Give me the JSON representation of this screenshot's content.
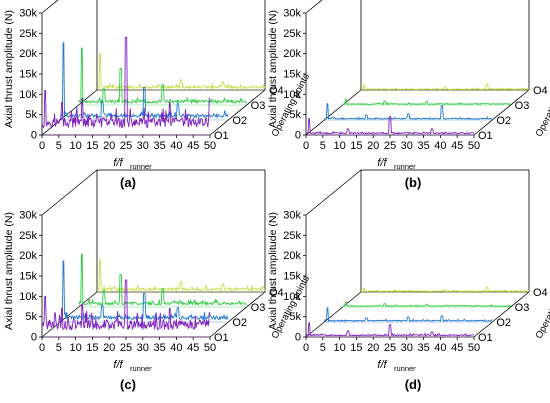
{
  "chart_data": [
    {
      "type": "line",
      "panel_label": "(a)",
      "ylabel": "Axial thrust amplitude (N)",
      "xlabel_main": "f/f",
      "xlabel_sub": "runner",
      "zlabel": "Operating points",
      "ylim": [
        0,
        30000
      ],
      "xlim": [
        0,
        50
      ],
      "xticks": [
        0,
        5,
        10,
        15,
        20,
        25,
        30,
        35,
        40,
        45,
        50
      ],
      "yticks": [
        0,
        5000,
        10000,
        15000,
        20000,
        25000,
        30000
      ],
      "ytick_labels": [
        "0",
        "5k",
        "10k",
        "15k",
        "20k",
        "25k",
        "30k"
      ],
      "z_categories": [
        "O1",
        "O2",
        "O3",
        "O4"
      ],
      "series": [
        {
          "name": "O1",
          "color": "#7f1fbf",
          "floor": 1800,
          "noise": 2500,
          "peaks": [
            {
              "x": 1,
              "y": 11000
            },
            {
              "x": 6,
              "y": 8000
            },
            {
              "x": 12,
              "y": 9000
            },
            {
              "x": 25,
              "y": 24000
            },
            {
              "x": 38,
              "y": 8000
            },
            {
              "x": 50,
              "y": 9000
            }
          ]
        },
        {
          "name": "O2",
          "color": "#1f77d0",
          "floor": 600,
          "noise": 900,
          "peaks": [
            {
              "x": 1,
              "y": 19000
            },
            {
              "x": 12.5,
              "y": 4500
            },
            {
              "x": 25,
              "y": 8000
            },
            {
              "x": 35,
              "y": 4000
            }
          ]
        },
        {
          "name": "O3",
          "color": "#2ecc40",
          "floor": 500,
          "noise": 700,
          "peaks": [
            {
              "x": 1,
              "y": 14000
            },
            {
              "x": 7.5,
              "y": 4000
            },
            {
              "x": 12.5,
              "y": 9000
            },
            {
              "x": 25,
              "y": 5000
            }
          ]
        },
        {
          "name": "O4",
          "color": "#c8dc46",
          "floor": 400,
          "noise": 600,
          "peaks": [
            {
              "x": 1,
              "y": 9000
            },
            {
              "x": 25,
              "y": 2500
            },
            {
              "x": 37.5,
              "y": 2000
            }
          ]
        }
      ]
    },
    {
      "type": "line",
      "panel_label": "(b)",
      "ylabel": "Axial thrust amplitude (N)",
      "xlabel_main": "f/f",
      "xlabel_sub": "runner",
      "zlabel": "Operating points",
      "ylim": [
        0,
        30000
      ],
      "xlim": [
        0,
        50
      ],
      "xticks": [
        0,
        5,
        10,
        15,
        20,
        25,
        30,
        35,
        40,
        45,
        50
      ],
      "yticks": [
        0,
        5000,
        10000,
        15000,
        20000,
        25000,
        30000
      ],
      "ytick_labels": [
        "0",
        "5k",
        "10k",
        "15k",
        "20k",
        "25k",
        "30k"
      ],
      "z_categories": [
        "O1",
        "O2",
        "O3",
        "O4"
      ],
      "series": [
        {
          "name": "O1",
          "color": "#7f1fbf",
          "floor": 300,
          "noise": 300,
          "peaks": [
            {
              "x": 1,
              "y": 4000
            },
            {
              "x": 12.5,
              "y": 1500
            },
            {
              "x": 25,
              "y": 4500
            },
            {
              "x": 37.5,
              "y": 1500
            }
          ]
        },
        {
          "name": "O2",
          "color": "#1f77d0",
          "floor": 200,
          "noise": 250,
          "peaks": [
            {
              "x": 1,
              "y": 4000
            },
            {
              "x": 12.5,
              "y": 1200
            },
            {
              "x": 25,
              "y": 1500
            },
            {
              "x": 35,
              "y": 3500
            }
          ]
        },
        {
          "name": "O3",
          "color": "#2ecc40",
          "floor": 150,
          "noise": 200,
          "peaks": [
            {
              "x": 1,
              "y": 1500
            },
            {
              "x": 12.5,
              "y": 1000
            },
            {
              "x": 25,
              "y": 900
            }
          ]
        },
        {
          "name": "O4",
          "color": "#c8dc46",
          "floor": 100,
          "noise": 200,
          "peaks": [
            {
              "x": 1,
              "y": 1200
            },
            {
              "x": 25,
              "y": 800
            },
            {
              "x": 37.5,
              "y": 1500
            }
          ]
        }
      ]
    },
    {
      "type": "line",
      "panel_label": "(c)",
      "ylabel": "Axial thrust amplitude (N)",
      "xlabel_main": "f/f",
      "xlabel_sub": "runner",
      "zlabel": "Operating points",
      "ylim": [
        0,
        30000
      ],
      "xlim": [
        0,
        50
      ],
      "xticks": [
        0,
        5,
        10,
        15,
        20,
        25,
        30,
        35,
        40,
        45,
        50
      ],
      "yticks": [
        0,
        5000,
        10000,
        15000,
        20000,
        25000,
        30000
      ],
      "ytick_labels": [
        "0",
        "5k",
        "10k",
        "15k",
        "20k",
        "25k",
        "30k"
      ],
      "z_categories": [
        "O1",
        "O2",
        "O3",
        "O4"
      ],
      "series": [
        {
          "name": "O1",
          "color": "#7f1fbf",
          "floor": 1800,
          "noise": 2500,
          "peaks": [
            {
              "x": 1,
              "y": 10000
            },
            {
              "x": 6,
              "y": 7000
            },
            {
              "x": 12,
              "y": 8000
            },
            {
              "x": 25,
              "y": 14000
            },
            {
              "x": 38,
              "y": 7000
            },
            {
              "x": 50,
              "y": 6000
            }
          ]
        },
        {
          "name": "O2",
          "color": "#1f77d0",
          "floor": 600,
          "noise": 900,
          "peaks": [
            {
              "x": 1,
              "y": 15000
            },
            {
              "x": 12.5,
              "y": 4000
            },
            {
              "x": 25,
              "y": 7000
            },
            {
              "x": 35,
              "y": 3500
            }
          ]
        },
        {
          "name": "O3",
          "color": "#2ecc40",
          "floor": 500,
          "noise": 700,
          "peaks": [
            {
              "x": 1,
              "y": 13000
            },
            {
              "x": 7.5,
              "y": 4000
            },
            {
              "x": 12.5,
              "y": 8000
            },
            {
              "x": 25,
              "y": 4500
            }
          ]
        },
        {
          "name": "O4",
          "color": "#c8dc46",
          "floor": 400,
          "noise": 600,
          "peaks": [
            {
              "x": 1,
              "y": 8000
            },
            {
              "x": 25,
              "y": 2500
            },
            {
              "x": 37.5,
              "y": 2000
            }
          ]
        }
      ]
    },
    {
      "type": "line",
      "panel_label": "(d)",
      "ylabel": "Axial thrust amplitude (N)",
      "xlabel_main": "f/f",
      "xlabel_sub": "runner",
      "zlabel": "Operating points",
      "ylim": [
        0,
        30000
      ],
      "xlim": [
        0,
        50
      ],
      "xticks": [
        0,
        5,
        10,
        15,
        20,
        25,
        30,
        35,
        40,
        45,
        50
      ],
      "yticks": [
        0,
        5000,
        10000,
        15000,
        20000,
        25000,
        30000
      ],
      "ytick_labels": [
        "0",
        "5k",
        "10k",
        "15k",
        "20k",
        "25k",
        "30k"
      ],
      "z_categories": [
        "O1",
        "O2",
        "O3",
        "O4"
      ],
      "series": [
        {
          "name": "O1",
          "color": "#7f1fbf",
          "floor": 300,
          "noise": 300,
          "peaks": [
            {
              "x": 1,
              "y": 3500
            },
            {
              "x": 12.5,
              "y": 1500
            },
            {
              "x": 25,
              "y": 3000
            },
            {
              "x": 37.5,
              "y": 1200
            }
          ]
        },
        {
          "name": "O2",
          "color": "#1f77d0",
          "floor": 200,
          "noise": 250,
          "peaks": [
            {
              "x": 1,
              "y": 3500
            },
            {
              "x": 12.5,
              "y": 1000
            },
            {
              "x": 25,
              "y": 1200
            },
            {
              "x": 35,
              "y": 1500
            }
          ]
        },
        {
          "name": "O3",
          "color": "#2ecc40",
          "floor": 150,
          "noise": 200,
          "peaks": [
            {
              "x": 1,
              "y": 1200
            },
            {
              "x": 12.5,
              "y": 800
            },
            {
              "x": 25,
              "y": 700
            }
          ]
        },
        {
          "name": "O4",
          "color": "#c8dc46",
          "floor": 100,
          "noise": 200,
          "peaks": [
            {
              "x": 1,
              "y": 900
            },
            {
              "x": 25,
              "y": 600
            },
            {
              "x": 37.5,
              "y": 1200
            }
          ]
        }
      ]
    }
  ]
}
